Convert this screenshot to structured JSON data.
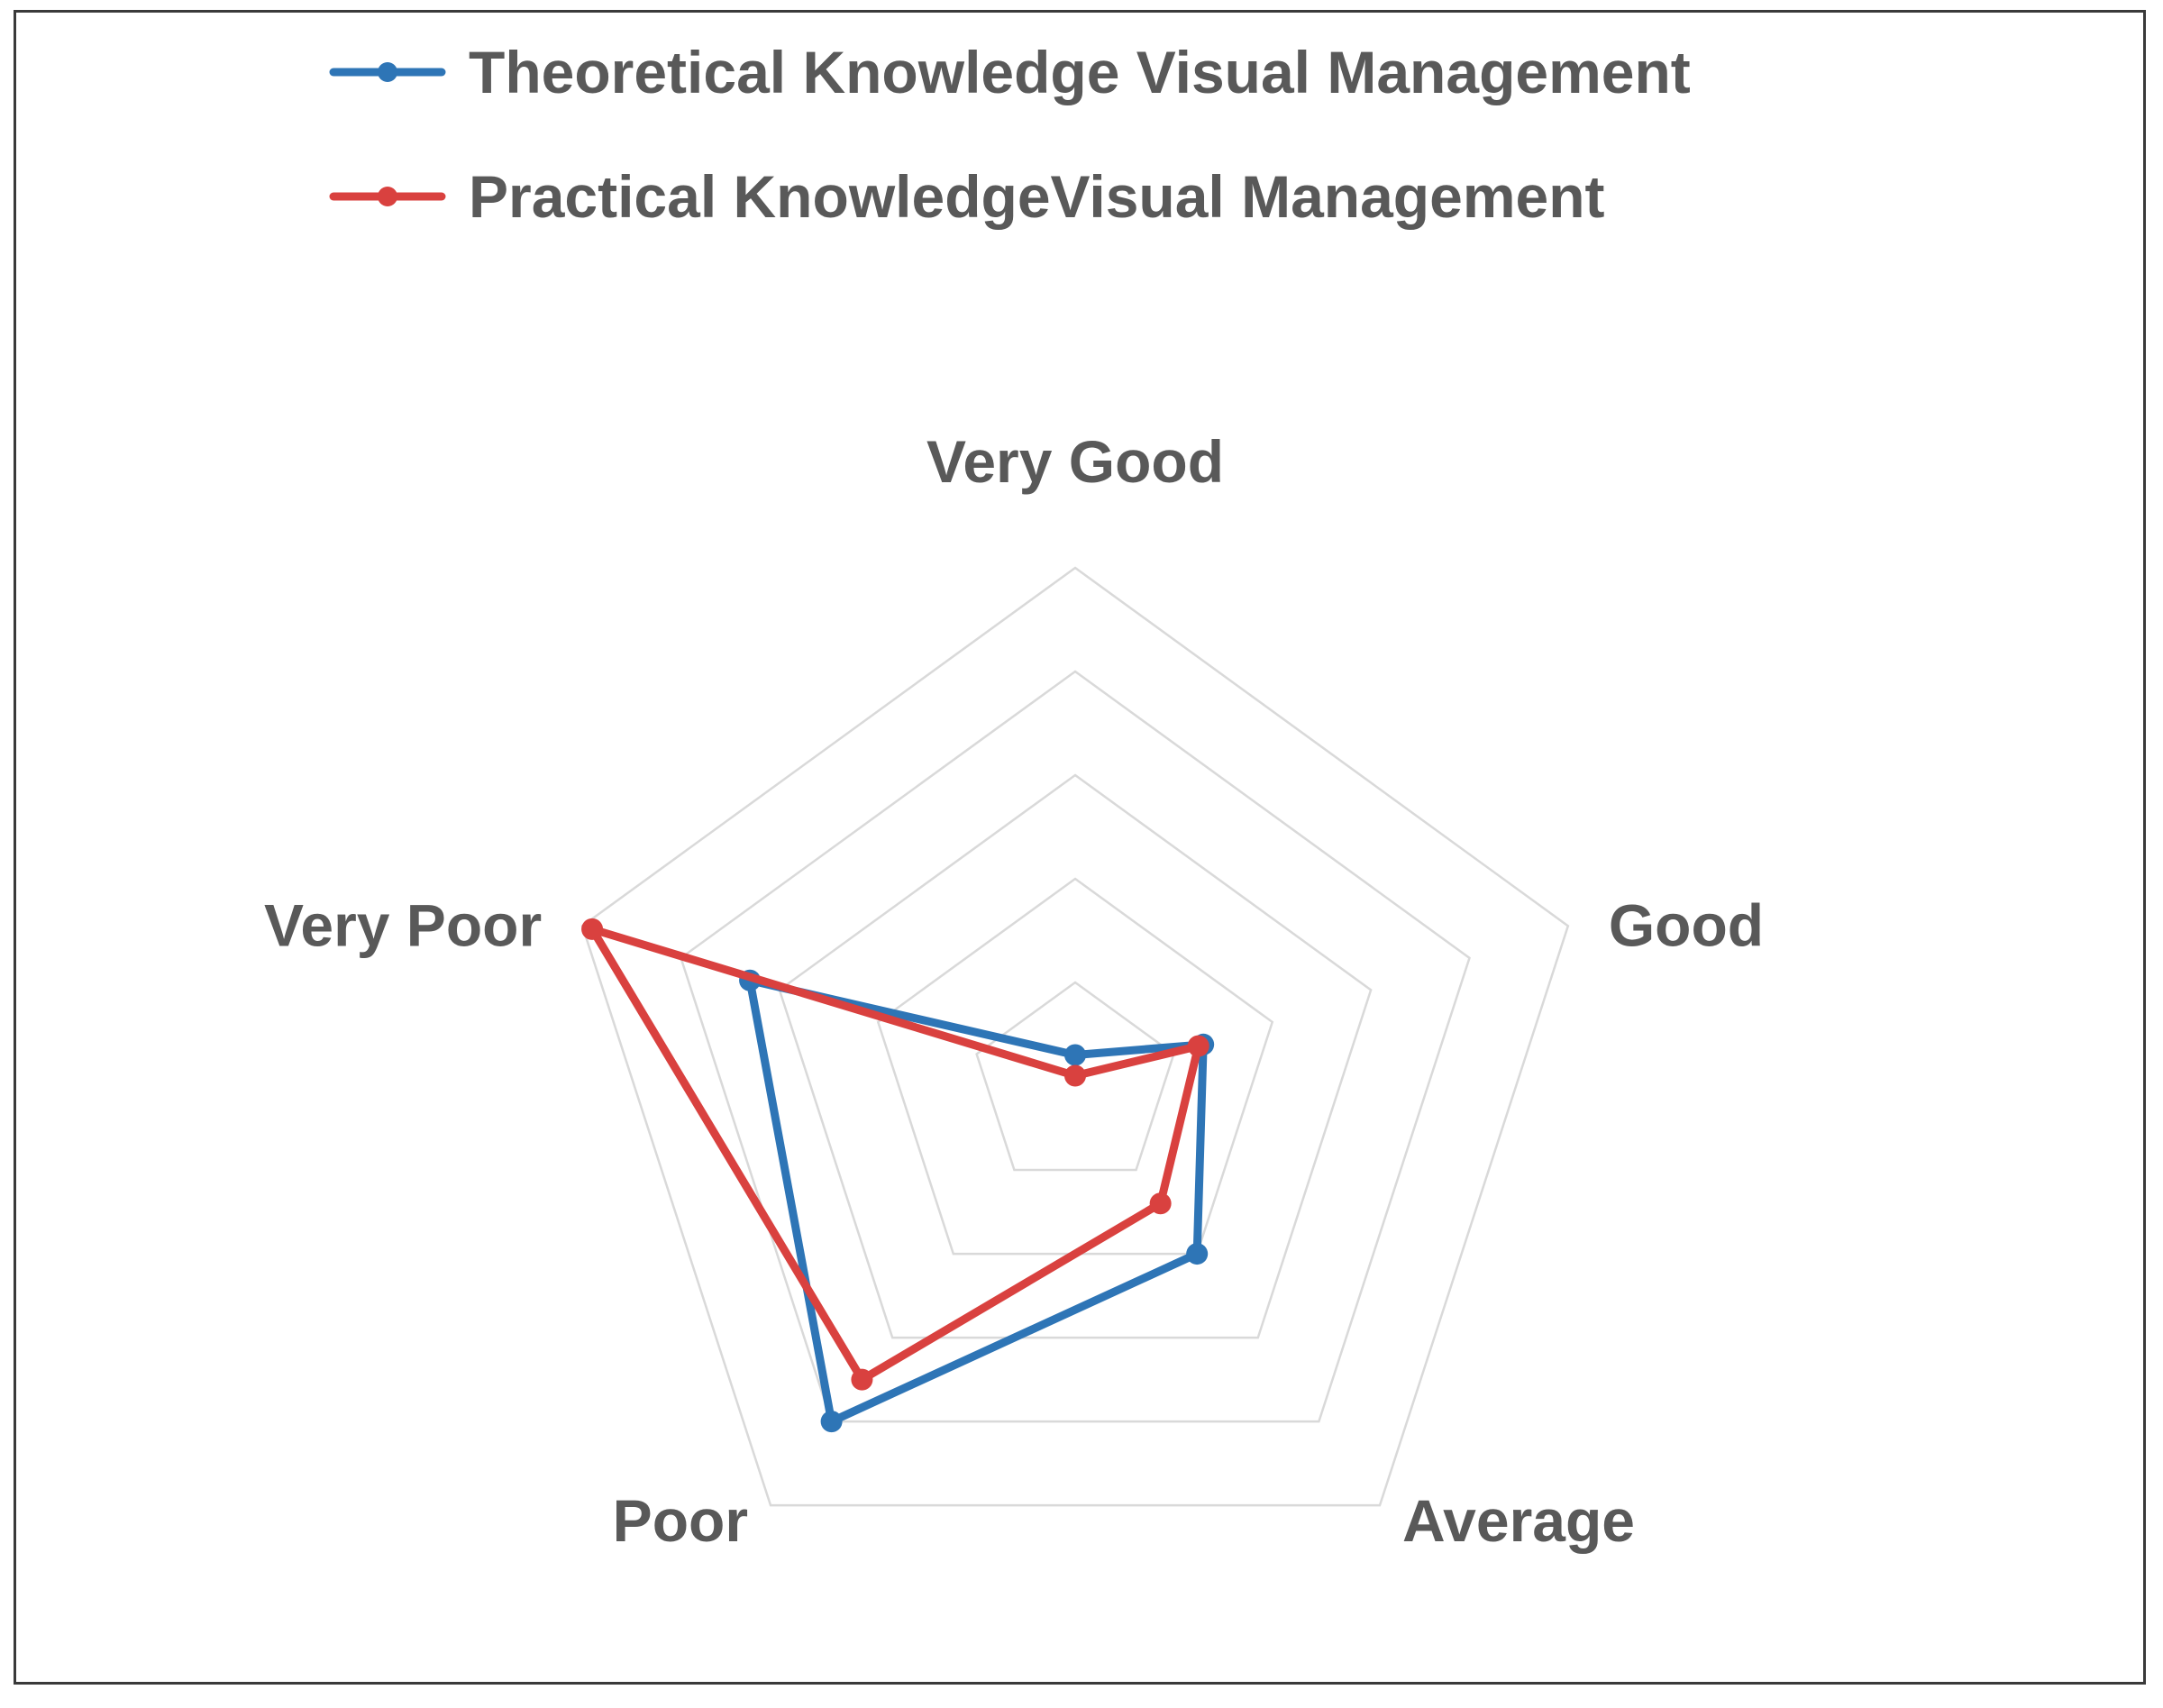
{
  "chart_data": {
    "type": "radar",
    "title": "",
    "categories": [
      "Very Good",
      "Good",
      "Average",
      "Poor",
      "Very Poor"
    ],
    "levels": 5,
    "rmax": 5,
    "grid": true,
    "legend_position": "top",
    "series": [
      {
        "name": "Theoretical Knowledge Visual Management",
        "color": "#2e75b6",
        "values": [
          0.3,
          1.3,
          2.0,
          4.0,
          3.3
        ]
      },
      {
        "name": "Practical KnowledgeVisual Management",
        "color": "#d9413f",
        "values": [
          0.1,
          1.25,
          1.4,
          3.5,
          4.9
        ]
      }
    ]
  }
}
